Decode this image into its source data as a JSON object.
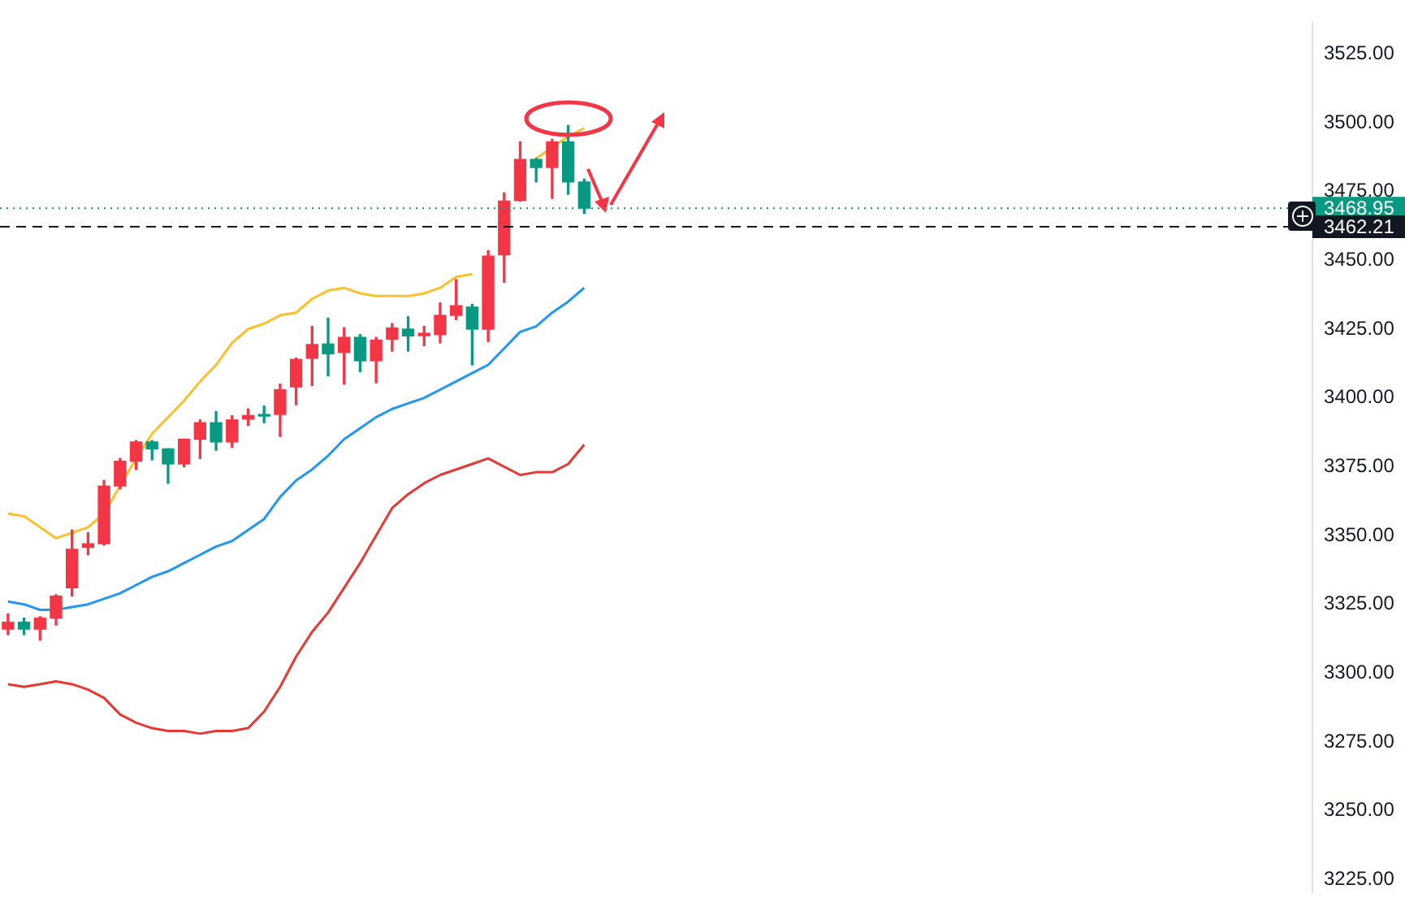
{
  "chart_data": {
    "type": "candlestick",
    "categories": [
      null,
      null,
      null,
      null,
      null,
      null,
      null,
      null,
      null,
      null,
      null,
      null,
      null,
      null,
      null,
      null,
      null,
      null,
      null,
      null,
      null,
      null,
      null,
      null,
      null,
      null,
      null,
      null,
      null,
      null,
      null,
      null,
      null,
      null,
      null,
      null,
      null,
      null,
      null,
      null,
      null,
      null,
      null,
      null,
      null,
      null,
      null,
      null,
      null,
      null,
      null,
      null,
      null,
      null,
      null,
      null,
      null,
      null,
      null,
      null,
      null,
      null,
      null,
      null,
      null,
      null,
      null,
      null,
      null,
      null,
      null,
      null,
      null,
      null,
      null,
      null,
      null,
      null,
      null,
      null,
      null,
      null
    ],
    "ohlc": [
      [
        3316,
        3321.5,
        3314,
        3318.5
      ],
      [
        3318.5,
        3320,
        3314,
        3316
      ],
      [
        3316,
        3320.5,
        3312,
        3320
      ],
      [
        3320,
        3328.5,
        3317.5,
        3328
      ],
      [
        3331,
        3352,
        3328,
        3345
      ],
      [
        3345.7,
        3351,
        3343,
        3347
      ],
      [
        3347,
        3370,
        3346.5,
        3368
      ],
      [
        3368,
        3378,
        3367,
        3377
      ],
      [
        3377,
        3384.5,
        3374,
        3384
      ],
      [
        3384,
        3384.5,
        3377.5,
        3381.5
      ],
      [
        3381.5,
        3381.5,
        3369,
        3376
      ],
      [
        3376,
        3385,
        3375,
        3385
      ],
      [
        3385,
        3392,
        3378,
        3391
      ],
      [
        3391,
        3395,
        3381,
        3384
      ],
      [
        3384,
        3393.5,
        3382,
        3392
      ],
      [
        3392.3,
        3396,
        3390,
        3393.6
      ],
      [
        3393.8,
        3397,
        3391,
        3393.4
      ],
      [
        3394,
        3405,
        3386,
        3403
      ],
      [
        3404,
        3414.5,
        3397.5,
        3414
      ],
      [
        3414.4,
        3426,
        3404.5,
        3419.4
      ],
      [
        3419.6,
        3429,
        3408,
        3416
      ],
      [
        3416.5,
        3425.5,
        3405,
        3422
      ],
      [
        3422,
        3423,
        3409.5,
        3413.5
      ],
      [
        3413.5,
        3422,
        3405.5,
        3421
      ],
      [
        3421.3,
        3427,
        3417,
        3425.4
      ],
      [
        3425,
        3429.5,
        3417,
        3422.5
      ],
      [
        3422.6,
        3426,
        3419,
        3423.5
      ],
      [
        3423,
        3434.5,
        3420,
        3430
      ],
      [
        3430,
        3443,
        3428.5,
        3433.5
      ],
      [
        3433,
        3434,
        3412,
        3425
      ],
      [
        3425,
        3453.5,
        3420.5,
        3451.5
      ],
      [
        3452,
        3474.5,
        3442,
        3471.5
      ],
      [
        3471.7,
        3493,
        3471.5,
        3486.7
      ],
      [
        3486.7,
        3487,
        3478.5,
        3483.7
      ],
      [
        3483.7,
        3494,
        3472.5,
        3493
      ],
      [
        3493,
        3499,
        3474,
        3478.5
      ],
      [
        3478.5,
        3479.5,
        3467,
        3468.95
      ],
      null,
      null,
      null,
      null,
      null,
      null,
      null,
      null,
      null,
      null,
      null,
      null,
      null,
      null,
      null,
      null,
      null,
      null,
      null,
      null,
      null,
      null,
      null,
      null,
      null,
      null,
      null,
      null,
      null,
      null,
      null,
      null,
      null,
      null,
      null,
      null,
      null,
      null,
      null,
      null,
      null,
      null,
      null,
      null,
      null
    ],
    "colors": [
      "#f23645",
      "#089981",
      "#f23645",
      "#f23645",
      "#f23645",
      "#f23645",
      "#f23645",
      "#f23645",
      "#f23645",
      "#089981",
      "#089981",
      "#f23645",
      "#f23645",
      "#089981",
      "#f23645",
      "#f23645",
      "#089981",
      "#f23645",
      "#f23645",
      "#f23645",
      "#089981",
      "#f23645",
      "#089981",
      "#f23645",
      "#f23645",
      "#089981",
      "#f23645",
      "#f23645",
      "#f23645",
      "#089981",
      "#f23645",
      "#f23645",
      "#f23645",
      "#089981",
      "#f23645",
      "#089981",
      "#089981",
      null,
      null,
      null,
      null,
      null,
      null,
      null,
      null,
      null,
      null,
      null,
      null,
      null,
      null,
      null,
      null,
      null,
      null,
      null,
      null,
      null,
      null,
      null,
      null,
      null,
      null,
      null,
      null,
      null,
      null,
      null,
      null,
      null,
      null,
      null,
      null,
      null,
      null,
      null,
      null,
      null,
      null,
      null,
      null,
      null
    ],
    "series": [
      {
        "type": "line",
        "color": "#fbc02d",
        "values": [
          3358,
          3357,
          3353,
          3349,
          3351,
          3353,
          3358,
          3368,
          3378,
          3387,
          3393,
          3399,
          3406,
          3412,
          3420,
          3425,
          3427,
          3430,
          3431,
          3436,
          3439,
          3440,
          3438,
          3437,
          3437,
          3437,
          3438,
          3440,
          3444,
          3445,
          null,
          null,
          null,
          3487,
          3491,
          3495,
          3498,
          null,
          null,
          null,
          null,
          null,
          null,
          null,
          null,
          null,
          null,
          null,
          null,
          null,
          null,
          null,
          null,
          null,
          null,
          null,
          null,
          null,
          null,
          null,
          null,
          null,
          null,
          null,
          null,
          null,
          null,
          null,
          null,
          null,
          null,
          null,
          null,
          null,
          null,
          null,
          null,
          null,
          null,
          null,
          null,
          null
        ]
      },
      {
        "type": "line",
        "color": "#2196f3",
        "values": [
          3326,
          3325,
          3323,
          3323,
          3324,
          3325,
          3327,
          3329,
          3332,
          3335,
          3337,
          3340,
          3343,
          3346,
          3348,
          3352,
          3356,
          3364,
          3370,
          3374,
          3379,
          3385,
          3389,
          3393,
          3396,
          3398,
          3400,
          3403,
          3406,
          3409,
          3412,
          3418,
          3424,
          3426,
          3431,
          3435,
          3440,
          null,
          null,
          null,
          null,
          null,
          null,
          null,
          null,
          null,
          null,
          null,
          null,
          null,
          null,
          null,
          null,
          null,
          null,
          null,
          null,
          null,
          null,
          null,
          null,
          null,
          null,
          null,
          null,
          null,
          null,
          null,
          null,
          null,
          null,
          null,
          null,
          null,
          null,
          null,
          null,
          null,
          null,
          null,
          null,
          null
        ]
      },
      {
        "type": "line",
        "color": "#e53935",
        "values": [
          3296,
          3295,
          3296,
          3297,
          3296,
          3294,
          3291,
          3285,
          3282,
          3280,
          3279,
          3279,
          3278,
          3279,
          3279,
          3280,
          3286,
          3295,
          3306,
          3315,
          3322,
          3331,
          3340,
          3350,
          3360,
          3365,
          3369,
          3372,
          3374,
          3376,
          3378,
          3375,
          3372,
          3373,
          3373,
          3376,
          3383,
          null,
          null,
          null,
          null,
          null,
          null,
          null,
          null,
          null,
          null,
          null,
          null,
          null,
          null,
          null,
          null,
          null,
          null,
          null,
          null,
          null,
          null,
          null,
          null,
          null,
          null,
          null,
          null,
          null,
          null,
          null,
          null,
          null,
          null,
          null,
          null,
          null,
          null,
          null,
          null,
          null,
          null,
          null,
          null,
          null
        ]
      }
    ],
    "marker": "none",
    "ylim": [
      3220.5,
      3536.2
    ],
    "yticks": [
      {
        "value": 3225,
        "label": "3225.00"
      },
      {
        "value": 3250,
        "label": "3250.00"
      },
      {
        "value": 3275,
        "label": "3275.00"
      },
      {
        "value": 3300,
        "label": "3300.00"
      },
      {
        "value": 3325,
        "label": "3325.00"
      },
      {
        "value": 3350,
        "label": "3350.00"
      },
      {
        "value": 3375,
        "label": "3375.00"
      },
      {
        "value": 3400,
        "label": "3400.00"
      },
      {
        "value": 3425,
        "label": "3425.00"
      },
      {
        "value": 3450,
        "label": "3450.00"
      },
      {
        "value": 3475,
        "label": "3475.00"
      },
      {
        "value": 3500,
        "label": "3500.00"
      },
      {
        "value": 3525,
        "label": "3525.00"
      }
    ],
    "tick_labels": "y",
    "ref_lines": [
      {
        "axis": "y",
        "value": 3468.95,
        "label": "3468.95",
        "color": "#089981",
        "line_style": "dotted"
      },
      {
        "axis": "y",
        "value": 3462.21,
        "label": "3462.21",
        "color": "#131722",
        "line_style": "dashed"
      }
    ]
  }
}
